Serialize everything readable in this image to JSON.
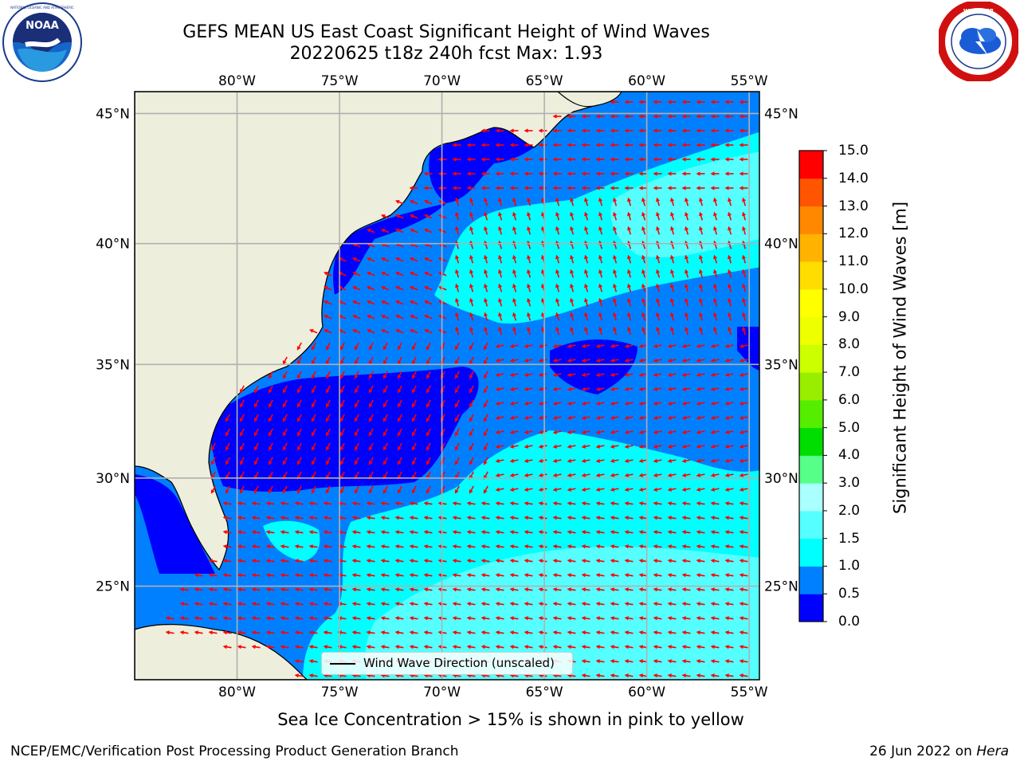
{
  "header": {
    "title_line1": "GEFS MEAN US East Coast Significant Height of Wind Waves",
    "title_line2": "20220625 t18z 240h fcst   Max: 1.93"
  },
  "logos": {
    "left": {
      "name": "noaa-logo",
      "text": "NOAA",
      "ring_text": "NATIONAL OCEANIC AND ATMOSPHERIC ADMINISTRATION · U.S. DEPARTMENT OF COMMERCE"
    },
    "right": {
      "name": "nws-logo",
      "ring_text": "NATIONAL WEATHER SERVICE"
    }
  },
  "map": {
    "lon_labels": [
      "80°W",
      "75°W",
      "70°W",
      "65°W",
      "60°W",
      "55°W"
    ],
    "lat_labels": [
      "45°N",
      "40°N",
      "35°N",
      "30°N",
      "25°N"
    ],
    "lon_values": [
      -80,
      -75,
      -70,
      -65,
      -60,
      -55
    ],
    "lat_values": [
      45,
      40,
      35,
      30,
      25
    ],
    "extent": {
      "lon": [
        -85,
        -54.5
      ],
      "lat": [
        20.5,
        45.8
      ]
    },
    "legend_label": "Wind Wave Direction (unscaled)",
    "colors": {
      "land": "#eeeedc",
      "arrow": "#ff0000",
      "grid": "#b0b0b0"
    }
  },
  "colorbar": {
    "label": "Significant Height of Wind Waves [m]",
    "ticks": [
      "0.0",
      "0.5",
      "1.0",
      "1.5",
      "2.0",
      "3.0",
      "4.0",
      "5.0",
      "6.0",
      "7.0",
      "8.0",
      "9.0",
      "10.0",
      "11.0",
      "12.0",
      "13.0",
      "14.0",
      "15.0"
    ],
    "colors": [
      "#0000ff",
      "#0080ff",
      "#00ffff",
      "#55ffff",
      "#aaffff",
      "#55ff88",
      "#00dd00",
      "#55ee00",
      "#99ee00",
      "#ccff00",
      "#eeff00",
      "#ffff00",
      "#ffdd00",
      "#ffb300",
      "#ff8800",
      "#ff5500",
      "#ff0000"
    ]
  },
  "chart_data": {
    "type": "heatmap",
    "title": "GEFS MEAN US East Coast Significant Height of Wind Waves",
    "subtitle": "20220625 t18z 240h fcst   Max: 1.93",
    "max_value": 1.93,
    "units": "m",
    "colorbar_range": [
      0,
      15
    ],
    "regions": [
      {
        "value_range": [
          0.0,
          0.5
        ],
        "description": "nearshore mid-Atlantic and off Georgia/Florida"
      },
      {
        "value_range": [
          0.5,
          1.0
        ],
        "description": "most of western Atlantic basin"
      },
      {
        "value_range": [
          1.0,
          2.0
        ],
        "description": "central-north Atlantic and southern Sargasso Sea"
      }
    ]
  },
  "footer": {
    "note": "Sea Ice Concentration > 15% is shown in pink to yellow",
    "left": "NCEP/EMC/Verification Post Processing Product Generation Branch",
    "right_prefix": "26 Jun 2022 on ",
    "right_italic": "Hera"
  }
}
